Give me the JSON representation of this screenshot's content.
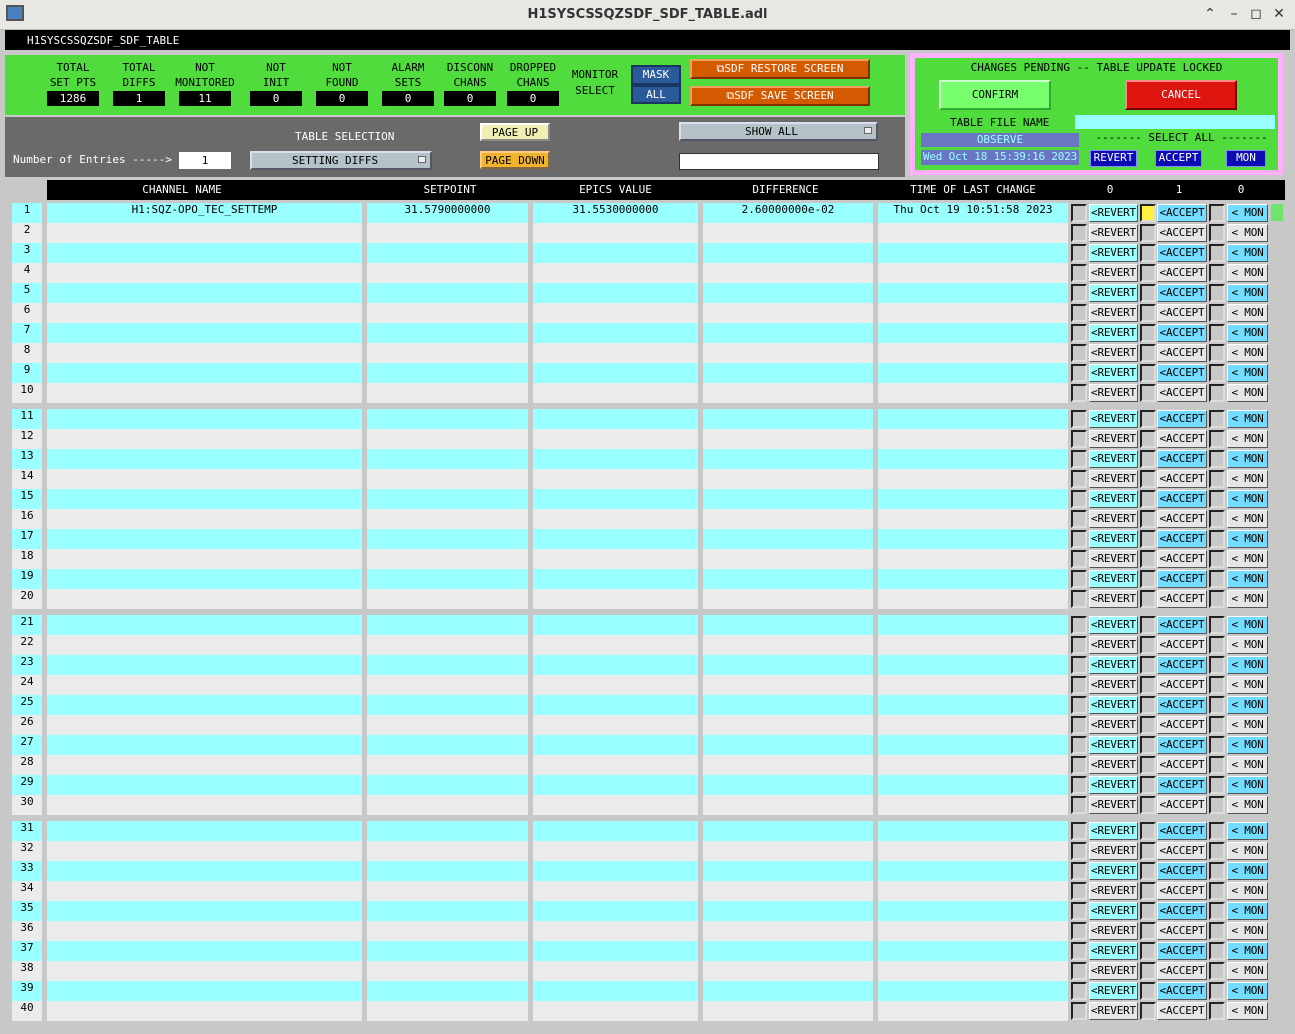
{
  "window": {
    "title": "H1SYSCSSQZSDF_SDF_TABLE.adl",
    "screen_name": "H1SYSCSSQZSDF_SDF_TABLE"
  },
  "stats": [
    {
      "label1": "TOTAL",
      "label2": "SET PTS",
      "value": "1286"
    },
    {
      "label1": "TOTAL",
      "label2": "DIFFS",
      "value": "1"
    },
    {
      "label1": "NOT",
      "label2": "MONITORED",
      "value": "11"
    },
    {
      "label1": "NOT",
      "label2": "INIT",
      "value": "0"
    },
    {
      "label1": "NOT",
      "label2": "FOUND",
      "value": "0"
    },
    {
      "label1": "ALARM",
      "label2": "SETS",
      "value": "0"
    },
    {
      "label1": "DISCONN",
      "label2": "CHANS",
      "value": "0"
    },
    {
      "label1": "DROPPED",
      "label2": "CHANS",
      "value": "0"
    }
  ],
  "monitor_select": {
    "label1": "MONITOR",
    "label2": "SELECT",
    "mask": "MASK",
    "all": "ALL"
  },
  "restore_label": "⧉SDF RESTORE SCREEN",
  "save_label": "⧉SDF SAVE SCREEN",
  "selection": {
    "table_selection_label": "TABLE SELECTION",
    "entries_label": "Number of Entries ----->",
    "entries_value": "1",
    "table_select_value": "SETTING DIFFS",
    "page_up": "PAGE UP",
    "page_down": "PAGE DOWN",
    "show_value": "SHOW ALL",
    "filter_value": ""
  },
  "pending": {
    "title": "CHANGES PENDING -- TABLE UPDATE LOCKED",
    "confirm": "CONFIRM",
    "cancel": "CANCEL",
    "file_label": "TABLE FILE NAME",
    "file_value": "",
    "observe": "OBSERVE",
    "file_time": "Wed Oct 18 15:39:16 2023",
    "select_all": "------- SELECT ALL -------",
    "revert": "REVERT",
    "accept": "ACCEPT",
    "mon": "MON"
  },
  "table": {
    "headers": {
      "channel": "CHANNEL NAME",
      "setpoint": "SETPOINT",
      "epics": "EPICS VALUE",
      "difference": "DIFFERENCE",
      "time": "TIME OF LAST CHANGE",
      "c0": "0",
      "c1": "1",
      "c2": "0"
    },
    "button_labels": {
      "revert": "<REVERT",
      "accept": "<ACCEPT",
      "mon": "< MON"
    },
    "rows": [
      {
        "index": "1",
        "channel": "H1:SQZ-OPO_TEC_SETTEMP",
        "setpoint": "31.5790000000",
        "epics": "31.5530000000",
        "difference": "2.60000000e-02",
        "time": "Thu Oct 19 10:51:58 2023",
        "accept_checked": true,
        "status": "#6ee66e"
      }
    ],
    "row_count": 40,
    "colors": {
      "cyan": "#99ffff",
      "light": "#ebebeb",
      "btn_cyan": "#73dcff",
      "btn_light": "#e6e6e6",
      "revert_cyan": "#99ffff"
    }
  }
}
